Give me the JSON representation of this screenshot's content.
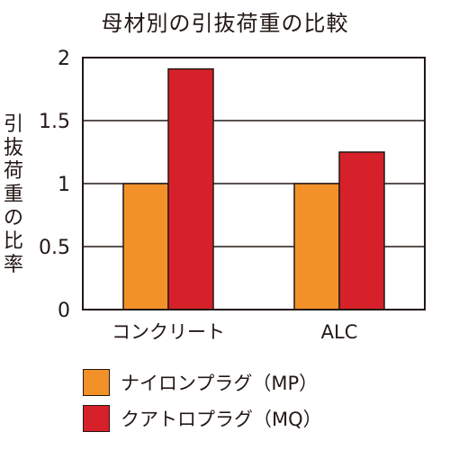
{
  "chart_data": {
    "type": "bar",
    "title": "母材別の引抜荷重の比較",
    "ylabel": "引抜荷重の比率",
    "xlabel": "",
    "categories": [
      "コンクリート",
      "ALC"
    ],
    "series": [
      {
        "name": "ナイロンプラグ（MP）",
        "values": [
          1,
          1
        ],
        "color": "#f39129"
      },
      {
        "name": "クアトロプラグ（MQ）",
        "values": [
          1.91,
          1.25
        ],
        "color": "#d7212a"
      }
    ],
    "ylim": [
      0,
      2
    ],
    "yticks": [
      "0",
      "0.5",
      "1",
      "1.5",
      "2"
    ],
    "grid": true,
    "legend": "bottom-left"
  }
}
